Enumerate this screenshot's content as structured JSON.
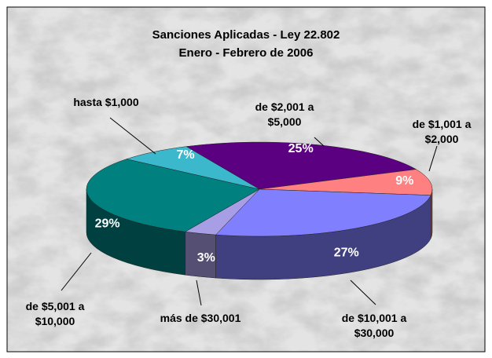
{
  "chart_data": {
    "type": "pie3d",
    "title": "Sanciones Aplicadas - Ley 22.802",
    "subtitle": "Enero - Febrero de 2006",
    "categories": [
      "de $2,001 a $5,000",
      "de $1,001 a $2,000",
      "de $10,001 a $30,000",
      "más de $30,001",
      "de $5,001 a $10,000",
      "hasta $1,000"
    ],
    "values": [
      25,
      9,
      27,
      3,
      29,
      7
    ],
    "value_labels": [
      "25%",
      "9%",
      "27%",
      "3%",
      "29%",
      "7%"
    ],
    "colors": [
      "#5c0082",
      "#ff8080",
      "#8080ff",
      "#a79ee6",
      "#00807f",
      "#3cb8cc"
    ]
  }
}
